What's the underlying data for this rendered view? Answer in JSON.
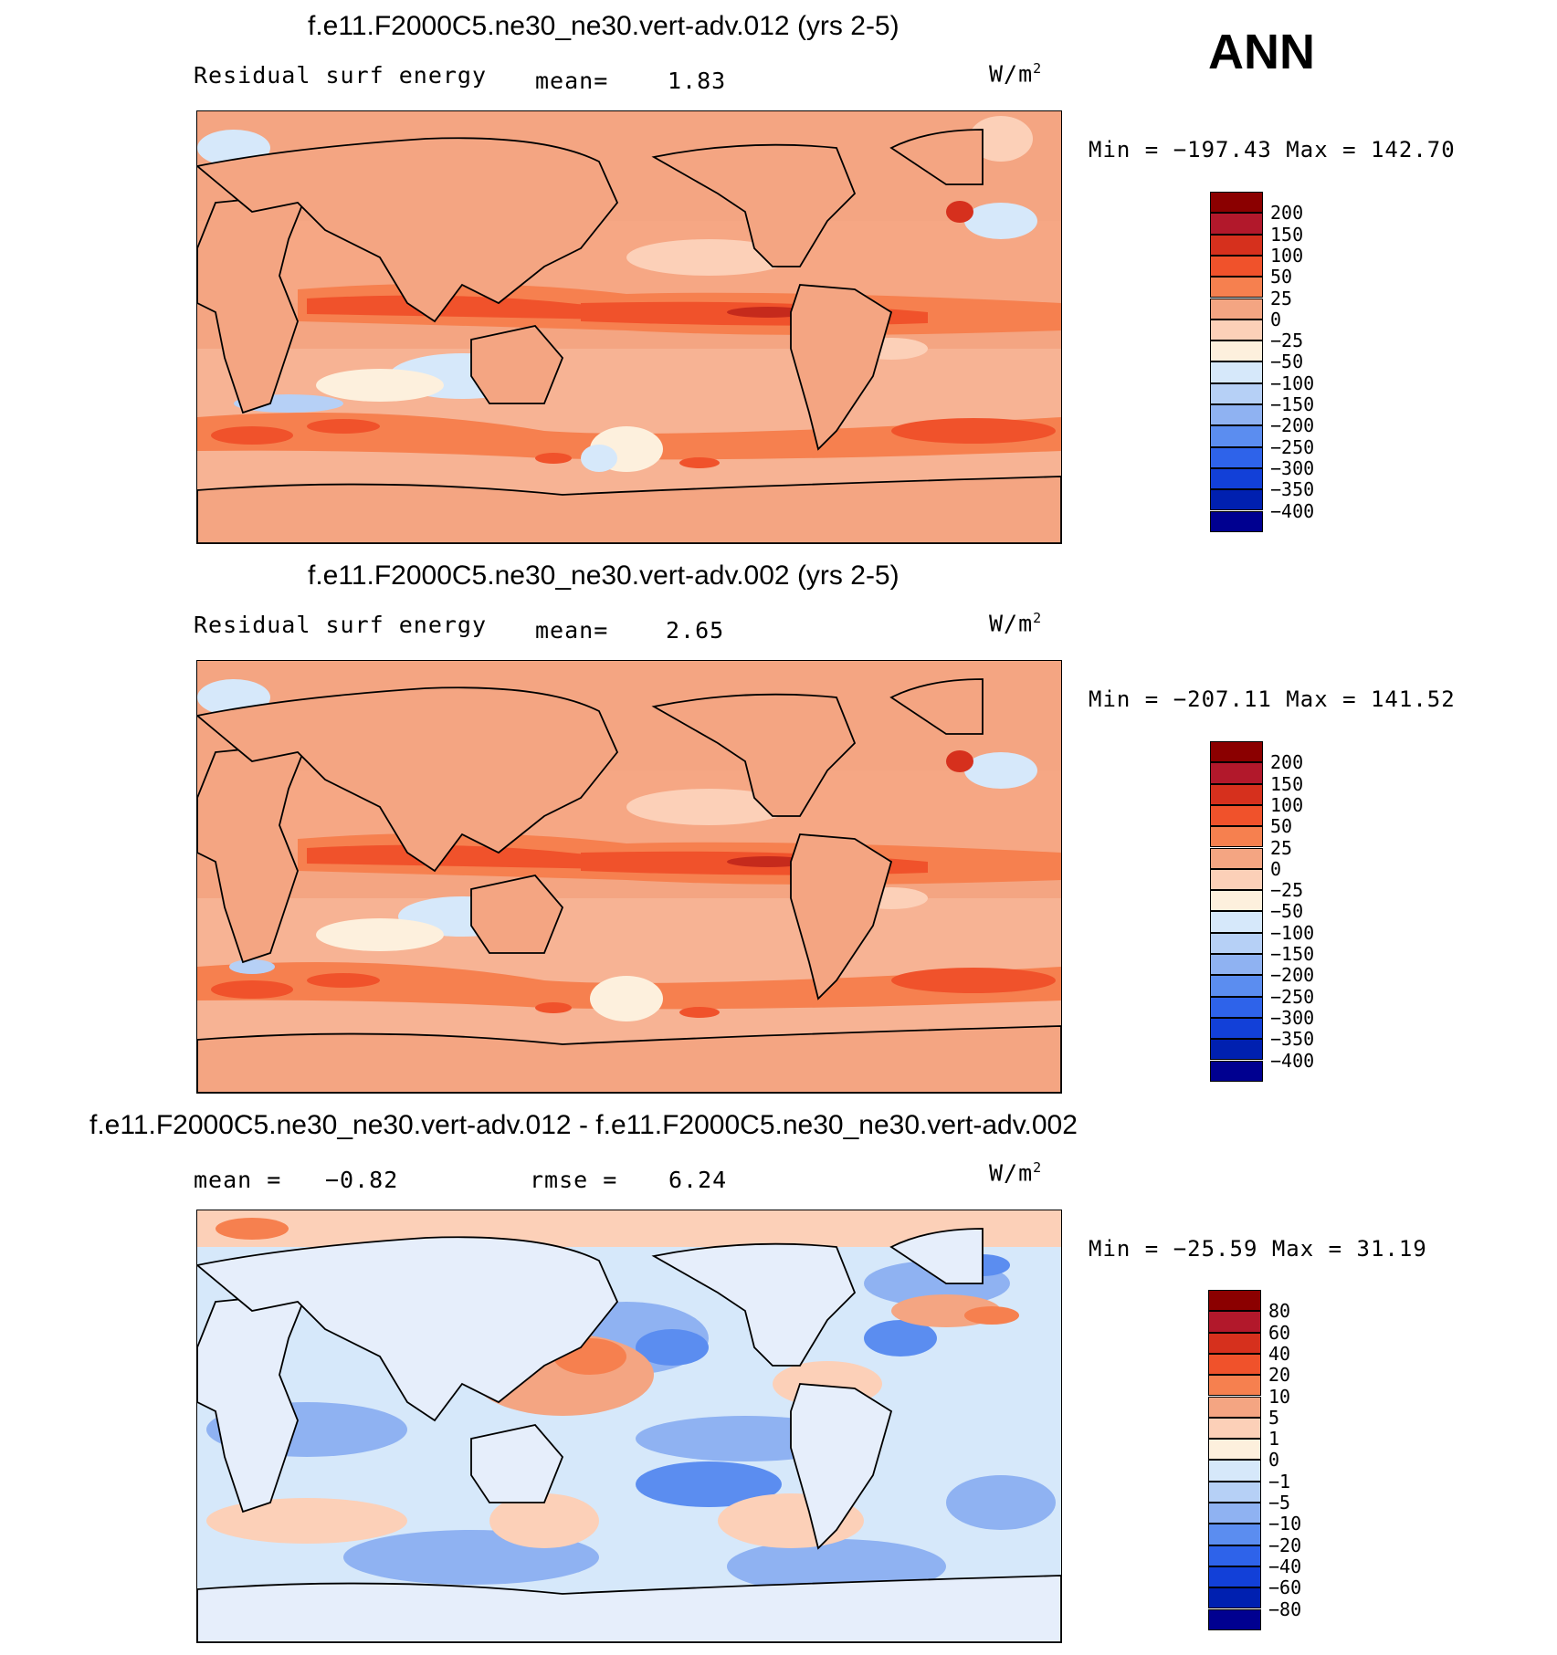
{
  "season": "ANN",
  "units": "W/m",
  "units_sup": "2",
  "panels": [
    {
      "title": "f.e11.F2000C5.ne30_ne30.vert-adv.012 (yrs 2-5)",
      "variable": "Residual surf energy",
      "stat_label": "mean=",
      "stat_value": "1.83",
      "minmax": "Min = −197.43 Max = 142.70",
      "scale": "abs",
      "dominant_color": "#f4a582",
      "colorbar_labels": [
        "200",
        "150",
        "100",
        "50",
        "25",
        "0",
        "−25",
        "−50",
        "−100",
        "−150",
        "−200",
        "−250",
        "−300",
        "−350",
        "−400"
      ]
    },
    {
      "title": "f.e11.F2000C5.ne30_ne30.vert-adv.002 (yrs 2-5)",
      "variable": "Residual surf energy",
      "stat_label": "mean=",
      "stat_value": "2.65",
      "minmax": "Min = −207.11 Max = 141.52",
      "scale": "abs",
      "dominant_color": "#f4a582",
      "colorbar_labels": [
        "200",
        "150",
        "100",
        "50",
        "25",
        "0",
        "−25",
        "−50",
        "−100",
        "−150",
        "−200",
        "−250",
        "−300",
        "−350",
        "−400"
      ]
    },
    {
      "title": "f.e11.F2000C5.ne30_ne30.vert-adv.012 - f.e11.F2000C5.ne30_ne30.vert-adv.002",
      "variable": "",
      "mean_label": "mean =",
      "mean_value": "−0.82",
      "rmse_label": "rmse =",
      "rmse_value": "6.24",
      "minmax": "Min = −25.59 Max = 31.19",
      "scale": "diff",
      "dominant_color": "#abc8f5",
      "colorbar_labels": [
        "80",
        "60",
        "40",
        "20",
        "10",
        "5",
        "1",
        "0",
        "−1",
        "−5",
        "−10",
        "−20",
        "−40",
        "−60",
        "−80"
      ]
    }
  ],
  "colorbar_colors": [
    "#8b0000",
    "#b2182b",
    "#d6301d",
    "#f0522b",
    "#f6804f",
    "#f4a582",
    "#fcd0b8",
    "#fdf0dd",
    "#d6e8fa",
    "#b6d0f6",
    "#8fb2f2",
    "#5b8df0",
    "#2e63ea",
    "#1240d8",
    "#0020b0",
    "#000090"
  ],
  "land_color": "#f4a582",
  "diff_land_color": "#e6eefb"
}
